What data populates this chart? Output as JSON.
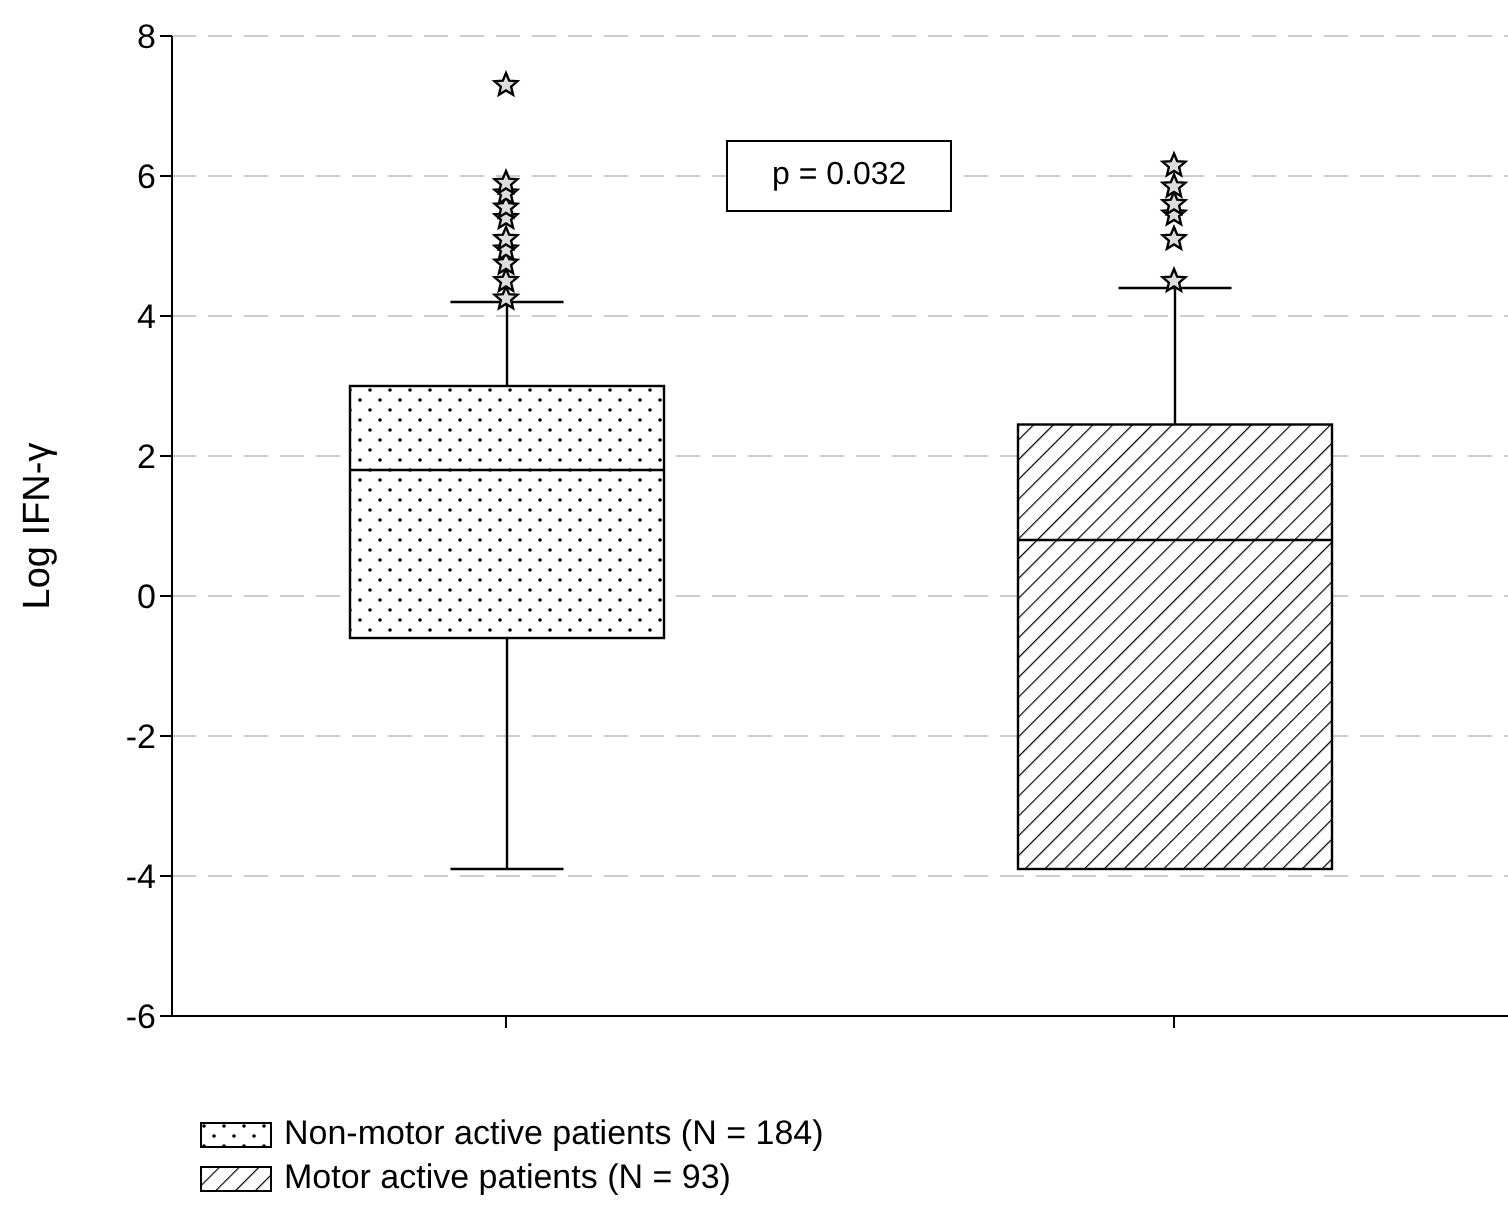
{
  "chart_data": {
    "type": "box",
    "ylabel": "Log IFN-γ",
    "categories": [
      null,
      null
    ],
    "series": [
      {
        "name": "Non-motor active patients (N = 184)",
        "color": "#000000",
        "boxes": [
          {
            "low": -3.9,
            "q1": -0.6,
            "median": 1.8,
            "q3": 3.0,
            "high": 4.2,
            "outliers": [
              4.25,
              4.5,
              4.75,
              4.95,
              5.1,
              5.4,
              5.55,
              5.75,
              5.9,
              7.3
            ]
          },
          null
        ]
      },
      {
        "name": "Motor active patients (N = 93)",
        "color": "#000000",
        "boxes": [
          null,
          {
            "low": -3.9,
            "q1": -3.9,
            "median": 0.8,
            "q3": 2.45,
            "high": 4.4,
            "outliers": [
              4.5,
              5.1,
              5.45,
              5.6,
              5.85,
              6.15
            ]
          }
        ]
      }
    ],
    "ylim": [
      -6,
      8
    ],
    "yticks": [
      -6,
      -4,
      -2,
      0,
      2,
      4,
      6,
      8
    ],
    "grid": "y",
    "legend": "bottom",
    "marker": "star",
    "annotations": [
      "p = 0.032"
    ]
  }
}
